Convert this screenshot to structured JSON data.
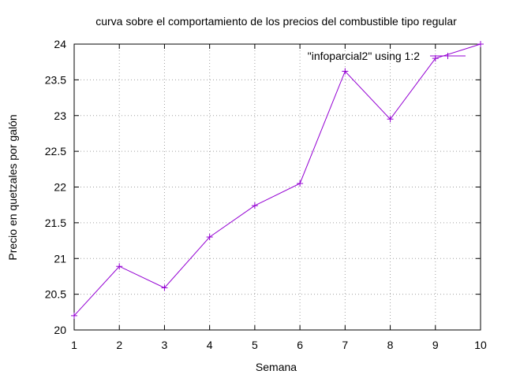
{
  "chart_data": {
    "type": "line",
    "title": "curva sobre el comportamiento de los precios del combustible tipo regular",
    "xlabel": "Semana",
    "ylabel": "Precio en quetzales por galón",
    "xlim": [
      1,
      10
    ],
    "ylim": [
      20,
      24
    ],
    "xticks": [
      "1",
      "2",
      "3",
      "4",
      "5",
      "6",
      "7",
      "8",
      "9",
      "10"
    ],
    "yticks": [
      "20",
      "20.5",
      "21",
      "21.5",
      "22",
      "22.5",
      "23",
      "23.5",
      "24"
    ],
    "grid": true,
    "legend_position": "top-right",
    "series": [
      {
        "name": "\"infoparcial2\" using 1:2",
        "color": "#9400d3",
        "marker": "plus",
        "x": [
          1,
          2,
          3,
          4,
          5,
          6,
          7,
          8,
          9,
          10
        ],
        "y": [
          20.2,
          20.89,
          20.59,
          21.3,
          21.74,
          22.05,
          23.62,
          22.95,
          23.8,
          24.0
        ]
      }
    ]
  }
}
